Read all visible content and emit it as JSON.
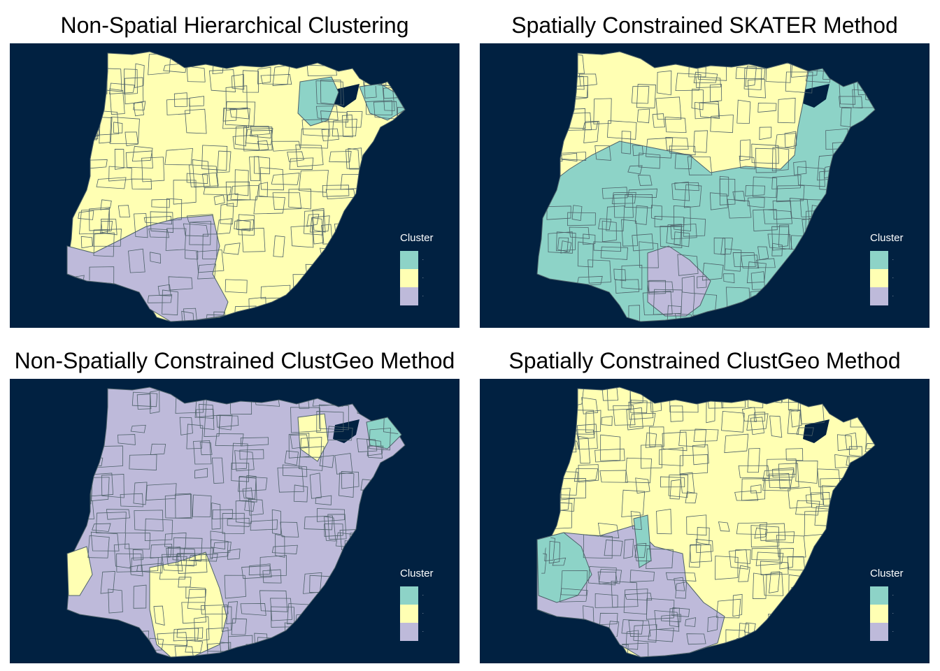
{
  "colors": {
    "background": "#012141",
    "border": "#4d6169",
    "cluster_1": "#8dd3c7",
    "cluster_2": "#ffffb3",
    "cluster_3": "#bebada"
  },
  "legend": {
    "title": "Cluster",
    "items": [
      {
        "label": ".",
        "color": "#8dd3c7"
      },
      {
        "label": ".",
        "color": "#ffffb3"
      },
      {
        "label": ".",
        "color": "#bebada"
      }
    ]
  },
  "panels": [
    {
      "title": "Non-Spatial Hierarchical Clustering",
      "base_cluster": 2
    },
    {
      "title": "Spatially Constrained SKATER Method",
      "base_cluster": 1
    },
    {
      "title": "Non-Spatially Constrained ClustGeo Method",
      "base_cluster": 3
    },
    {
      "title": "Spatially Constrained ClustGeo Method",
      "base_cluster": 2
    }
  ]
}
